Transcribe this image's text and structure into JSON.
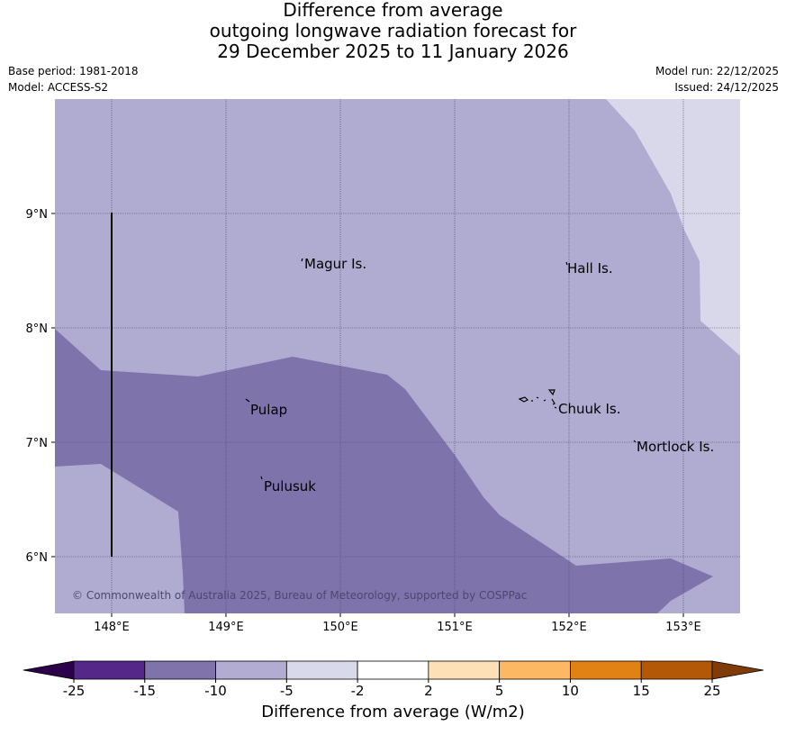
{
  "title": {
    "line1": "Difference from average",
    "line2": "outgoing longwave radiation forecast for",
    "line3": "29 December 2025 to 11 January 2026"
  },
  "meta": {
    "base_period": "Base period: 1981-2018",
    "model": "Model: ACCESS-S2",
    "model_run": "Model run: 22/12/2025",
    "issued": "Issued: 24/12/2025"
  },
  "map": {
    "lon_ticks": [
      "148°E",
      "149°E",
      "150°E",
      "151°E",
      "152°E",
      "153°E"
    ],
    "lat_ticks": [
      "9°N",
      "8°N",
      "7°N",
      "6°N"
    ],
    "places": [
      "Magur Is.",
      "Hall Is.",
      "Pulap",
      "Chuuk Is.",
      "Mortlock Is.",
      "Pulusuk"
    ],
    "copyright": "© Commonwealth of Australia 2025, Bureau of Meteorology, supported by COSPPac",
    "category_colors": {
      "-15 to -10": "#7f73ab",
      "-10 to -5": "#b0abd1",
      "-5 to -2": "#d8d8ea"
    }
  },
  "colorbar": {
    "title": "Difference from average (W/m2)",
    "tick_labels": [
      "-25",
      "-15",
      "-10",
      "-5",
      "-2",
      "2",
      "5",
      "10",
      "15",
      "25"
    ],
    "colors": [
      "#2d004b",
      "#542788",
      "#8073ac",
      "#b2abd2",
      "#d8daeb",
      "#ffffff",
      "#fee0b6",
      "#fdb863",
      "#e08214",
      "#b35806",
      "#7f3b08"
    ]
  }
}
